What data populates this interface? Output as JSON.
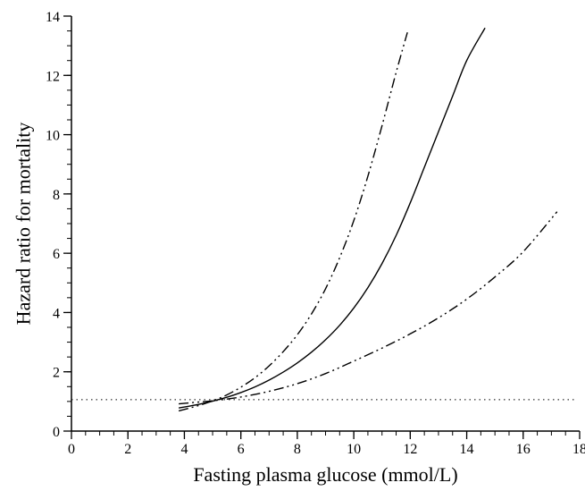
{
  "chart_data": {
    "type": "line",
    "xlabel": "Fasting plasma glucose (mmol/L)",
    "ylabel": "Hazard ratio for mortality",
    "xlim": [
      0,
      18
    ],
    "ylim": [
      0,
      14
    ],
    "x_major_ticks": [
      0,
      2,
      4,
      6,
      8,
      10,
      12,
      14,
      16,
      18
    ],
    "y_major_ticks": [
      0,
      2,
      4,
      6,
      8,
      10,
      12,
      14
    ],
    "x_minor_step": 0.5,
    "y_minor_step": 0.5,
    "grid": false,
    "reference_line": {
      "y": 1.06,
      "style": "dotted"
    },
    "series": [
      {
        "style": "solid",
        "x": [
          3.8,
          4.5,
          5.0,
          5.5,
          6.0,
          6.5,
          7.0,
          7.5,
          8.0,
          8.5,
          9.0,
          9.5,
          10.0,
          10.5,
          11.0,
          11.5,
          12.0,
          12.5,
          13.0,
          13.5,
          14.0,
          14.65
        ],
        "y": [
          0.78,
          0.9,
          1.01,
          1.14,
          1.3,
          1.49,
          1.72,
          1.99,
          2.3,
          2.66,
          3.08,
          3.57,
          4.15,
          4.84,
          5.65,
          6.6,
          7.7,
          8.9,
          10.1,
          11.3,
          12.5,
          13.6
        ]
      },
      {
        "style": "dash-dot-dot",
        "x": [
          3.8,
          4.5,
          5.0,
          5.5,
          6.0,
          6.5,
          7.0,
          7.5,
          8.0,
          8.5,
          9.0,
          9.5,
          10.0,
          10.5,
          11.0,
          11.5,
          11.9
        ],
        "y": [
          0.68,
          0.86,
          1.02,
          1.22,
          1.48,
          1.8,
          2.2,
          2.68,
          3.25,
          3.95,
          4.8,
          5.85,
          7.1,
          8.6,
          10.3,
          12.1,
          13.45
        ]
      },
      {
        "style": "dash-dot-dot",
        "x": [
          3.8,
          4.5,
          5.0,
          6.0,
          7.0,
          8.0,
          9.0,
          10.0,
          11.0,
          12.0,
          13.0,
          14.0,
          15.0,
          16.0,
          17.2
        ],
        "y": [
          0.92,
          0.98,
          1.02,
          1.15,
          1.34,
          1.6,
          1.94,
          2.36,
          2.8,
          3.28,
          3.82,
          4.45,
          5.2,
          6.05,
          7.4
        ]
      }
    ]
  }
}
